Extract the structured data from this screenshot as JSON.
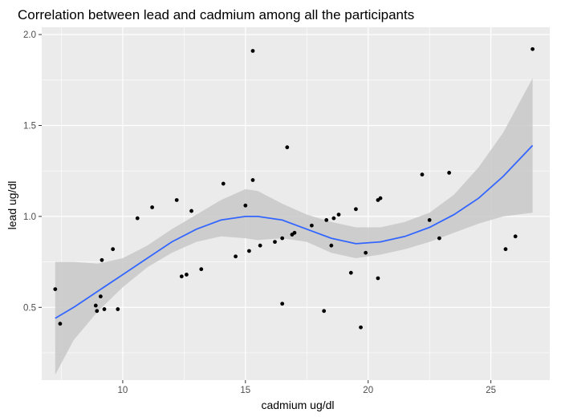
{
  "chart_data": {
    "type": "scatter",
    "title": "Correlation between lead and cadmium among all the participants",
    "xlabel": "cadmium ug/dl",
    "ylabel": "lead ug/dl",
    "xlim": [
      6.7,
      27.4
    ],
    "ylim": [
      0.1,
      2.04
    ],
    "x_ticks": [
      10,
      15,
      20,
      25
    ],
    "y_ticks": [
      0.5,
      1.0,
      1.5,
      2.0
    ],
    "y_tick_labels": [
      "0.5",
      "1.0",
      "1.5",
      "2.0"
    ],
    "x_minor": [
      7.5,
      12.5,
      17.5,
      22.5
    ],
    "y_minor": [
      0.25,
      0.75,
      1.25,
      1.75
    ],
    "grid": true,
    "colors": {
      "panel": "#ebebeb",
      "grid": "#ffffff",
      "points": "#000000",
      "smooth_line": "#3366ff",
      "band": "#c8c8c8"
    },
    "points": [
      {
        "x": 7.25,
        "y": 0.6
      },
      {
        "x": 7.45,
        "y": 0.41
      },
      {
        "x": 8.9,
        "y": 0.51
      },
      {
        "x": 8.95,
        "y": 0.48
      },
      {
        "x": 9.1,
        "y": 0.56
      },
      {
        "x": 9.15,
        "y": 0.76
      },
      {
        "x": 9.25,
        "y": 0.49
      },
      {
        "x": 9.6,
        "y": 0.82
      },
      {
        "x": 9.8,
        "y": 0.49
      },
      {
        "x": 10.6,
        "y": 0.99
      },
      {
        "x": 11.2,
        "y": 1.05
      },
      {
        "x": 12.2,
        "y": 1.09
      },
      {
        "x": 12.4,
        "y": 0.67
      },
      {
        "x": 12.6,
        "y": 0.68
      },
      {
        "x": 12.8,
        "y": 1.03
      },
      {
        "x": 13.2,
        "y": 0.71
      },
      {
        "x": 14.1,
        "y": 1.18
      },
      {
        "x": 14.6,
        "y": 0.78
      },
      {
        "x": 15.0,
        "y": 1.06
      },
      {
        "x": 15.15,
        "y": 0.81
      },
      {
        "x": 15.3,
        "y": 1.2
      },
      {
        "x": 15.3,
        "y": 1.91
      },
      {
        "x": 15.6,
        "y": 0.84
      },
      {
        "x": 16.2,
        "y": 0.86
      },
      {
        "x": 16.5,
        "y": 0.88
      },
      {
        "x": 16.5,
        "y": 0.52
      },
      {
        "x": 16.7,
        "y": 1.38
      },
      {
        "x": 16.9,
        "y": 0.9
      },
      {
        "x": 17.0,
        "y": 0.91
      },
      {
        "x": 17.7,
        "y": 0.95
      },
      {
        "x": 18.2,
        "y": 0.48
      },
      {
        "x": 18.3,
        "y": 0.98
      },
      {
        "x": 18.5,
        "y": 0.84
      },
      {
        "x": 18.6,
        "y": 0.99
      },
      {
        "x": 18.8,
        "y": 1.01
      },
      {
        "x": 19.3,
        "y": 0.69
      },
      {
        "x": 19.5,
        "y": 1.04
      },
      {
        "x": 19.7,
        "y": 0.39
      },
      {
        "x": 19.9,
        "y": 0.8
      },
      {
        "x": 20.4,
        "y": 0.66
      },
      {
        "x": 20.4,
        "y": 1.09
      },
      {
        "x": 20.5,
        "y": 1.1
      },
      {
        "x": 22.2,
        "y": 1.23
      },
      {
        "x": 22.5,
        "y": 0.98
      },
      {
        "x": 22.9,
        "y": 0.88
      },
      {
        "x": 23.3,
        "y": 1.24
      },
      {
        "x": 25.6,
        "y": 0.82
      },
      {
        "x": 26.0,
        "y": 0.89
      },
      {
        "x": 26.7,
        "y": 1.92
      }
    ],
    "smooth": [
      {
        "x": 7.25,
        "y": 0.44,
        "lo": 0.13,
        "hi": 0.75
      },
      {
        "x": 8.0,
        "y": 0.5,
        "lo": 0.32,
        "hi": 0.75
      },
      {
        "x": 9.0,
        "y": 0.59,
        "lo": 0.48,
        "hi": 0.74
      },
      {
        "x": 10.0,
        "y": 0.68,
        "lo": 0.61,
        "hi": 0.77
      },
      {
        "x": 11.0,
        "y": 0.77,
        "lo": 0.72,
        "hi": 0.84
      },
      {
        "x": 12.0,
        "y": 0.86,
        "lo": 0.8,
        "hi": 0.93
      },
      {
        "x": 13.0,
        "y": 0.93,
        "lo": 0.86,
        "hi": 1.01
      },
      {
        "x": 14.0,
        "y": 0.98,
        "lo": 0.89,
        "hi": 1.09
      },
      {
        "x": 15.0,
        "y": 1.0,
        "lo": 0.88,
        "hi": 1.15
      },
      {
        "x": 15.5,
        "y": 1.0,
        "lo": 0.87,
        "hi": 1.14
      },
      {
        "x": 16.5,
        "y": 0.98,
        "lo": 0.88,
        "hi": 1.07
      },
      {
        "x": 17.5,
        "y": 0.93,
        "lo": 0.86,
        "hi": 1.01
      },
      {
        "x": 18.5,
        "y": 0.88,
        "lo": 0.8,
        "hi": 0.97
      },
      {
        "x": 19.5,
        "y": 0.85,
        "lo": 0.77,
        "hi": 0.94
      },
      {
        "x": 20.5,
        "y": 0.86,
        "lo": 0.79,
        "hi": 0.94
      },
      {
        "x": 21.5,
        "y": 0.89,
        "lo": 0.82,
        "hi": 0.97
      },
      {
        "x": 22.5,
        "y": 0.94,
        "lo": 0.86,
        "hi": 1.02
      },
      {
        "x": 23.5,
        "y": 1.01,
        "lo": 0.91,
        "hi": 1.12
      },
      {
        "x": 24.5,
        "y": 1.1,
        "lo": 0.96,
        "hi": 1.27
      },
      {
        "x": 25.5,
        "y": 1.22,
        "lo": 1.0,
        "hi": 1.46
      },
      {
        "x": 26.7,
        "y": 1.39,
        "lo": 1.02,
        "hi": 1.76
      }
    ]
  }
}
